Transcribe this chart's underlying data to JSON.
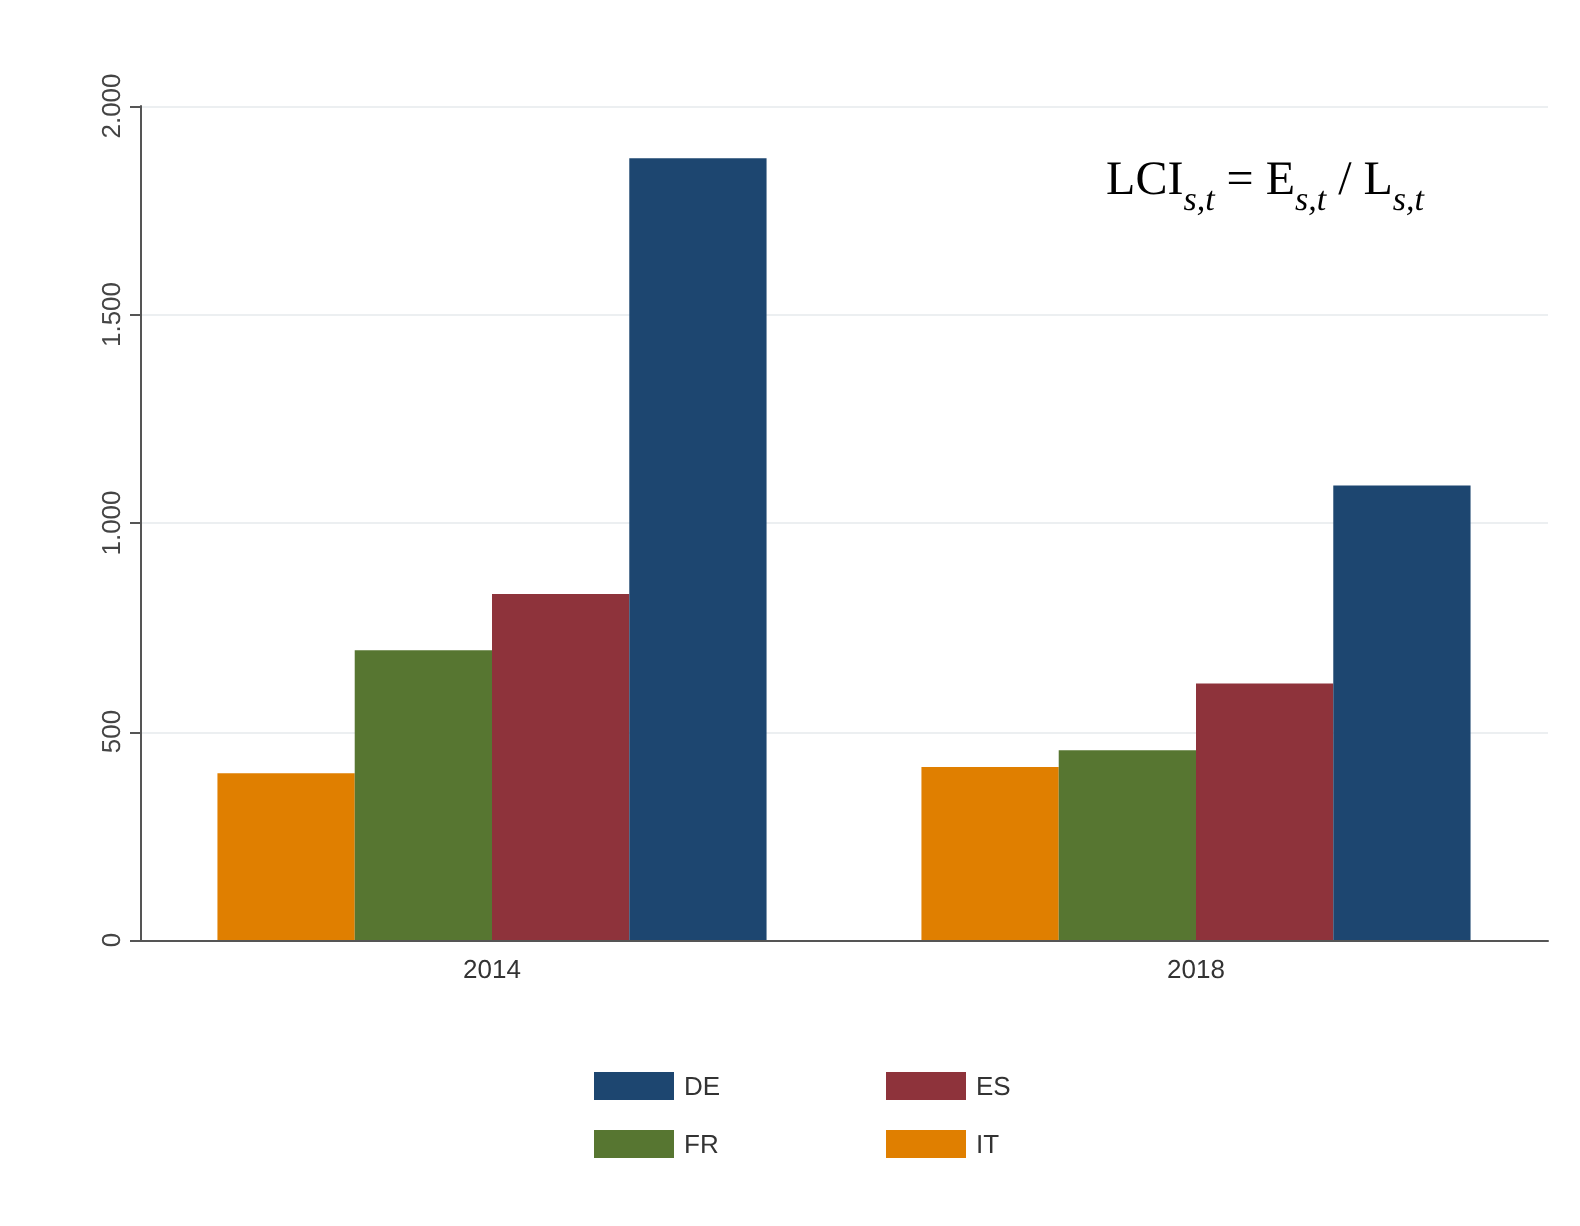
{
  "chart_data": {
    "type": "bar",
    "categories": [
      "2014",
      "2018"
    ],
    "series": [
      {
        "name": "IT",
        "color": "#e07f00",
        "values": [
          400,
          415
        ]
      },
      {
        "name": "FR",
        "color": "#577631",
        "values": [
          695,
          455
        ]
      },
      {
        "name": "ES",
        "color": "#8e333b",
        "values": [
          830,
          615
        ]
      },
      {
        "name": "DE",
        "color": "#1d4670",
        "values": [
          1875,
          1090
        ]
      }
    ],
    "ylim": [
      0,
      2000
    ],
    "yticks": [
      0,
      500,
      {
        "value": 1000,
        "label": "1.000"
      },
      {
        "value": 1500,
        "label": "1.500"
      },
      {
        "value": 2000,
        "label": "2.000"
      }
    ],
    "grid": "y",
    "legend": "bottom",
    "annotations": [
      "LCI$_{s,t}$ = E$_{s,t}$ / L$_{s,t}$"
    ]
  }
}
